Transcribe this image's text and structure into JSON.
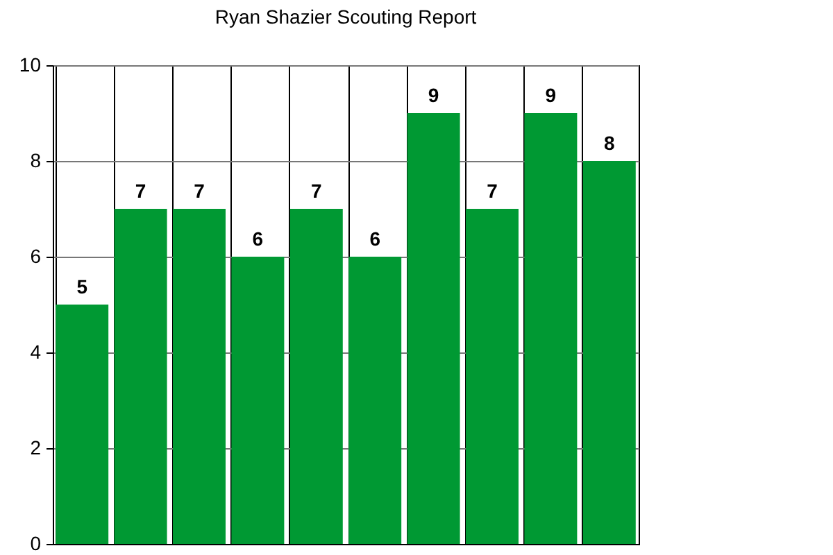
{
  "chart_data": {
    "type": "bar",
    "title": "Ryan Shazier Scouting Report",
    "categories": [
      null,
      null,
      null,
      null,
      null,
      null,
      null,
      null,
      null,
      null
    ],
    "values": [
      5,
      7,
      7,
      6,
      7,
      6,
      9,
      7,
      9,
      8
    ],
    "color": "#009933",
    "ylim": [
      0,
      10
    ],
    "yticks": [
      0,
      2,
      4,
      6,
      8,
      10
    ],
    "grid": true,
    "data_labels": true
  }
}
